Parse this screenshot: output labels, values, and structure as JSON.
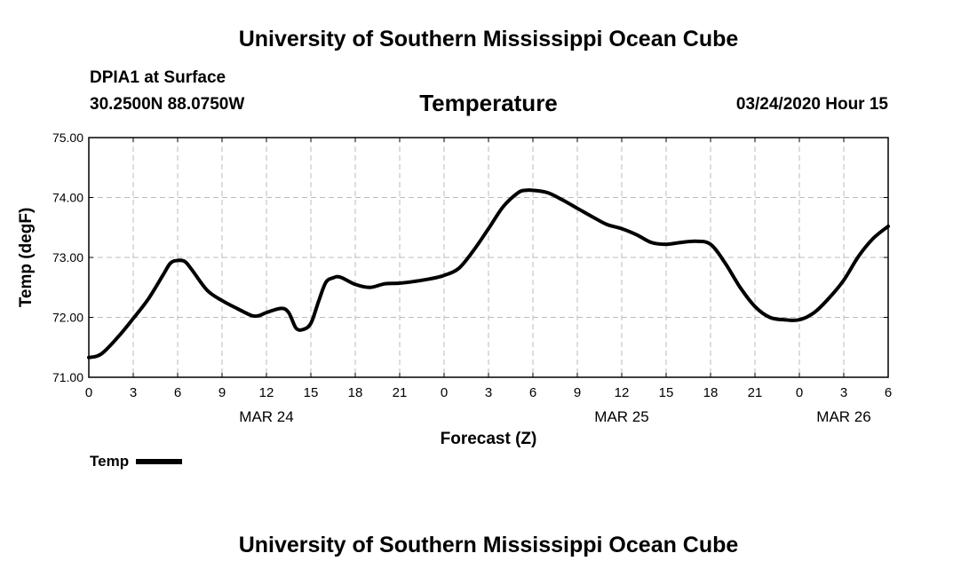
{
  "header": {
    "main_title": "University of Southern Mississippi Ocean Cube",
    "station": "DPIA1 at Surface",
    "coords": "30.2500N 88.0750W",
    "variable": "Temperature",
    "datetime": "03/24/2020 Hour 15",
    "footer_title": "University of Southern Mississippi Ocean Cube"
  },
  "chart_data": {
    "type": "line",
    "title": "Temperature",
    "xlabel": "Forecast (Z)",
    "ylabel": "Temp (degF)",
    "xlim": [
      0,
      54
    ],
    "ylim": [
      71.0,
      75.0
    ],
    "y_ticks": [
      "71.00",
      "72.00",
      "73.00",
      "74.00",
      "75.00"
    ],
    "y_tick_values": [
      71.0,
      72.0,
      73.0,
      74.0,
      75.0
    ],
    "x_ticks": [
      "0",
      "3",
      "6",
      "9",
      "12",
      "15",
      "18",
      "21",
      "0",
      "3",
      "6",
      "9",
      "12",
      "15",
      "18",
      "21",
      "0",
      "3",
      "6"
    ],
    "x_tick_values": [
      0,
      3,
      6,
      9,
      12,
      15,
      18,
      21,
      24,
      27,
      30,
      33,
      36,
      39,
      42,
      45,
      48,
      51,
      54
    ],
    "date_labels": [
      {
        "label": "MAR 24",
        "x": 12
      },
      {
        "label": "MAR 25",
        "x": 36
      },
      {
        "label": "MAR 26",
        "x": 51
      }
    ],
    "grid": true,
    "legend_position": "bottom-left",
    "series": [
      {
        "name": "Temp",
        "color": "#000000",
        "x": [
          0,
          0.5,
          1,
          2,
          3,
          4,
          5,
          5.5,
          6,
          6.5,
          7,
          8,
          9,
          10,
          11,
          11.5,
          12,
          13,
          13.5,
          14,
          14.5,
          15,
          15.5,
          16,
          16.5,
          17,
          18,
          19,
          20,
          21,
          22,
          23,
          24,
          25,
          26,
          27,
          28,
          29,
          29.5,
          30,
          31,
          32,
          33,
          34,
          35,
          36,
          37,
          38,
          39,
          40,
          41,
          42,
          43,
          44,
          45,
          46,
          47,
          48,
          49,
          50,
          51,
          52,
          53,
          54
        ],
        "values": [
          71.33,
          71.35,
          71.42,
          71.68,
          71.98,
          72.3,
          72.7,
          72.9,
          72.95,
          72.93,
          72.78,
          72.45,
          72.28,
          72.15,
          72.03,
          72.03,
          72.08,
          72.15,
          72.08,
          71.82,
          71.8,
          71.9,
          72.25,
          72.58,
          72.66,
          72.67,
          72.55,
          72.5,
          72.56,
          72.57,
          72.6,
          72.64,
          72.7,
          72.82,
          73.12,
          73.48,
          73.85,
          74.08,
          74.12,
          74.12,
          74.08,
          73.96,
          73.82,
          73.68,
          73.55,
          73.48,
          73.38,
          73.25,
          73.22,
          73.25,
          73.27,
          73.22,
          72.9,
          72.5,
          72.18,
          72.0,
          71.96,
          71.96,
          72.08,
          72.32,
          72.62,
          73.02,
          73.32,
          73.52
        ]
      }
    ]
  }
}
